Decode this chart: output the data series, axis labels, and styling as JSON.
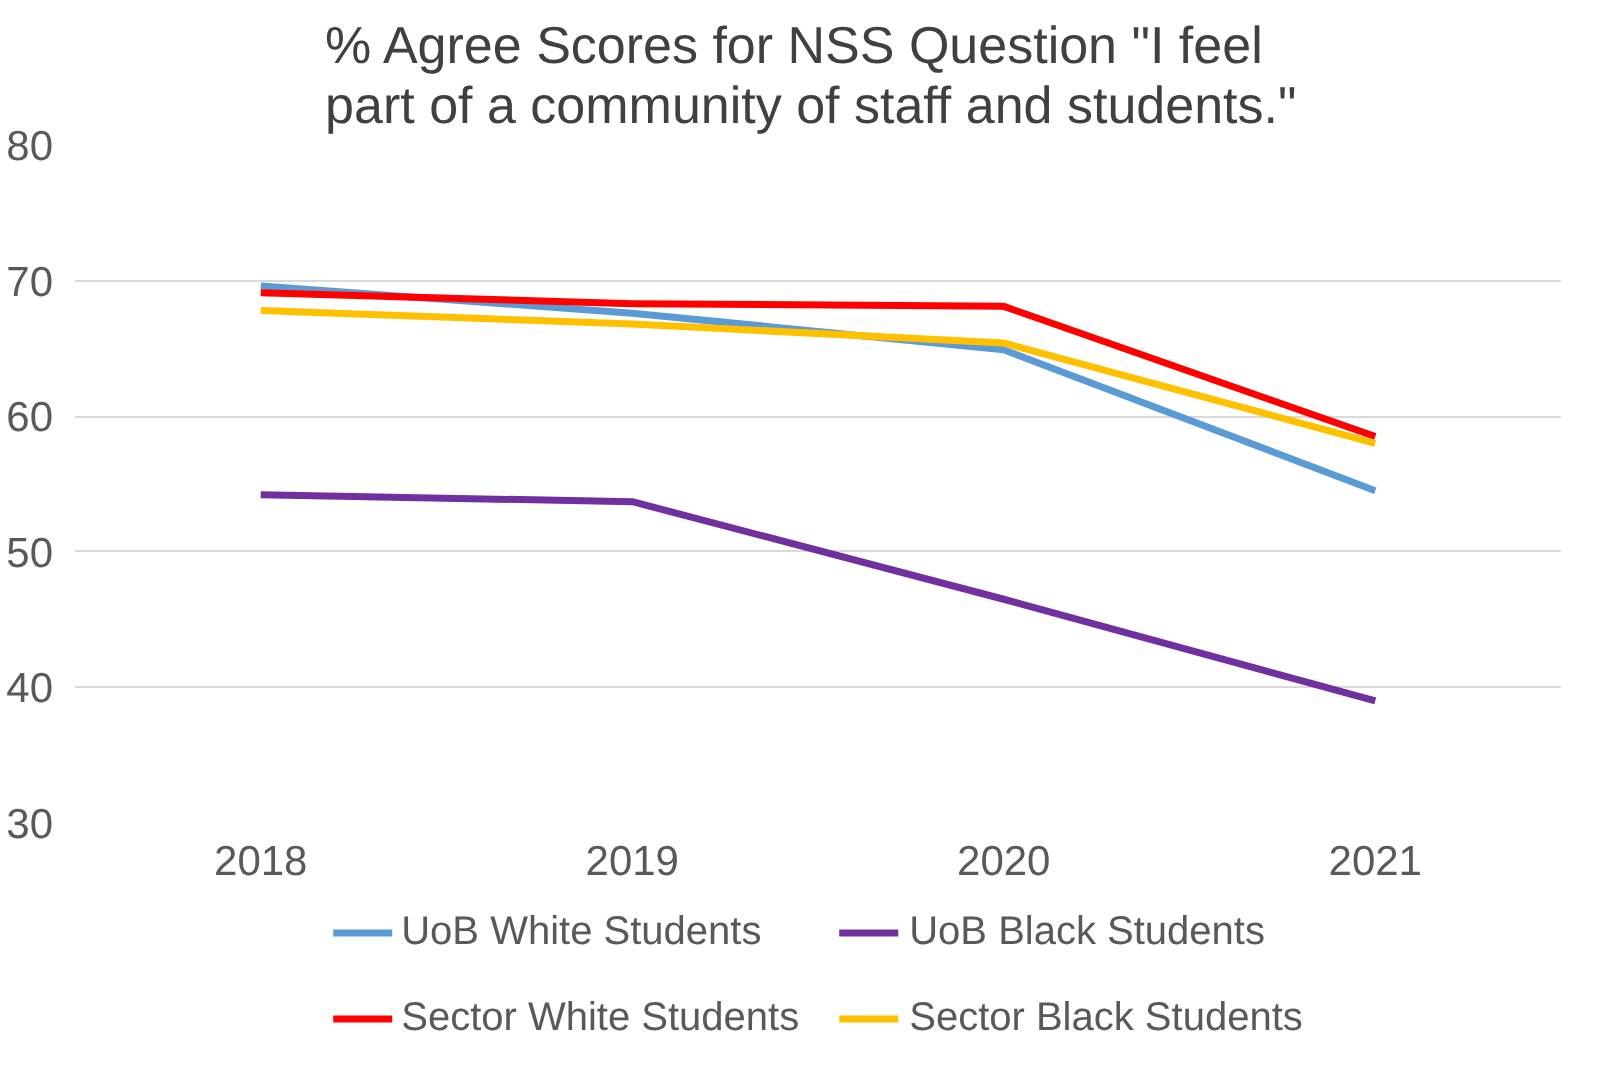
{
  "chart_data": {
    "type": "line",
    "title": "% Agree Scores for NSS Question \"I feel\npart of a community  of staff and students.\"",
    "categories": [
      "2018",
      "2019",
      "2020",
      "2021"
    ],
    "series": [
      {
        "name": "UoB White Students",
        "color": "#5b9bd5",
        "values": [
          69.6,
          67.6,
          64.9,
          54.5
        ]
      },
      {
        "name": "UoB Black Students",
        "color": "#7030a0",
        "values": [
          54.2,
          53.7,
          46.5,
          39.0
        ]
      },
      {
        "name": "Sector White Students",
        "color": "#ff0000",
        "values": [
          69.1,
          68.3,
          68.1,
          58.5
        ]
      },
      {
        "name": "Sector Black Students",
        "color": "#ffc000",
        "values": [
          67.8,
          66.8,
          65.4,
          58.0
        ]
      }
    ],
    "ylim": [
      30,
      80
    ],
    "yticks": [
      30,
      40,
      50,
      60,
      70,
      80
    ],
    "grid": "y",
    "legend": "bottom",
    "marker": "none",
    "line_style": "solid"
  }
}
